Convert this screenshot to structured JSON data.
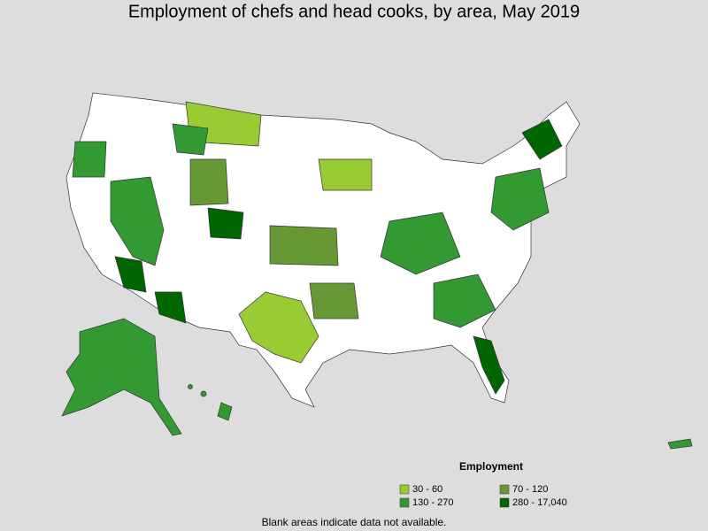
{
  "title": "Employment of chefs and head cooks, by area, May 2019",
  "legend": {
    "title": "Employment",
    "items": [
      {
        "label": "30 - 60",
        "color": "#99cc33"
      },
      {
        "label": "70 - 120",
        "color": "#669933"
      },
      {
        "label": "130 - 270",
        "color": "#339933"
      },
      {
        "label": "280 - 17,040",
        "color": "#006600"
      }
    ]
  },
  "footnote": "Blank areas indicate data not available."
}
